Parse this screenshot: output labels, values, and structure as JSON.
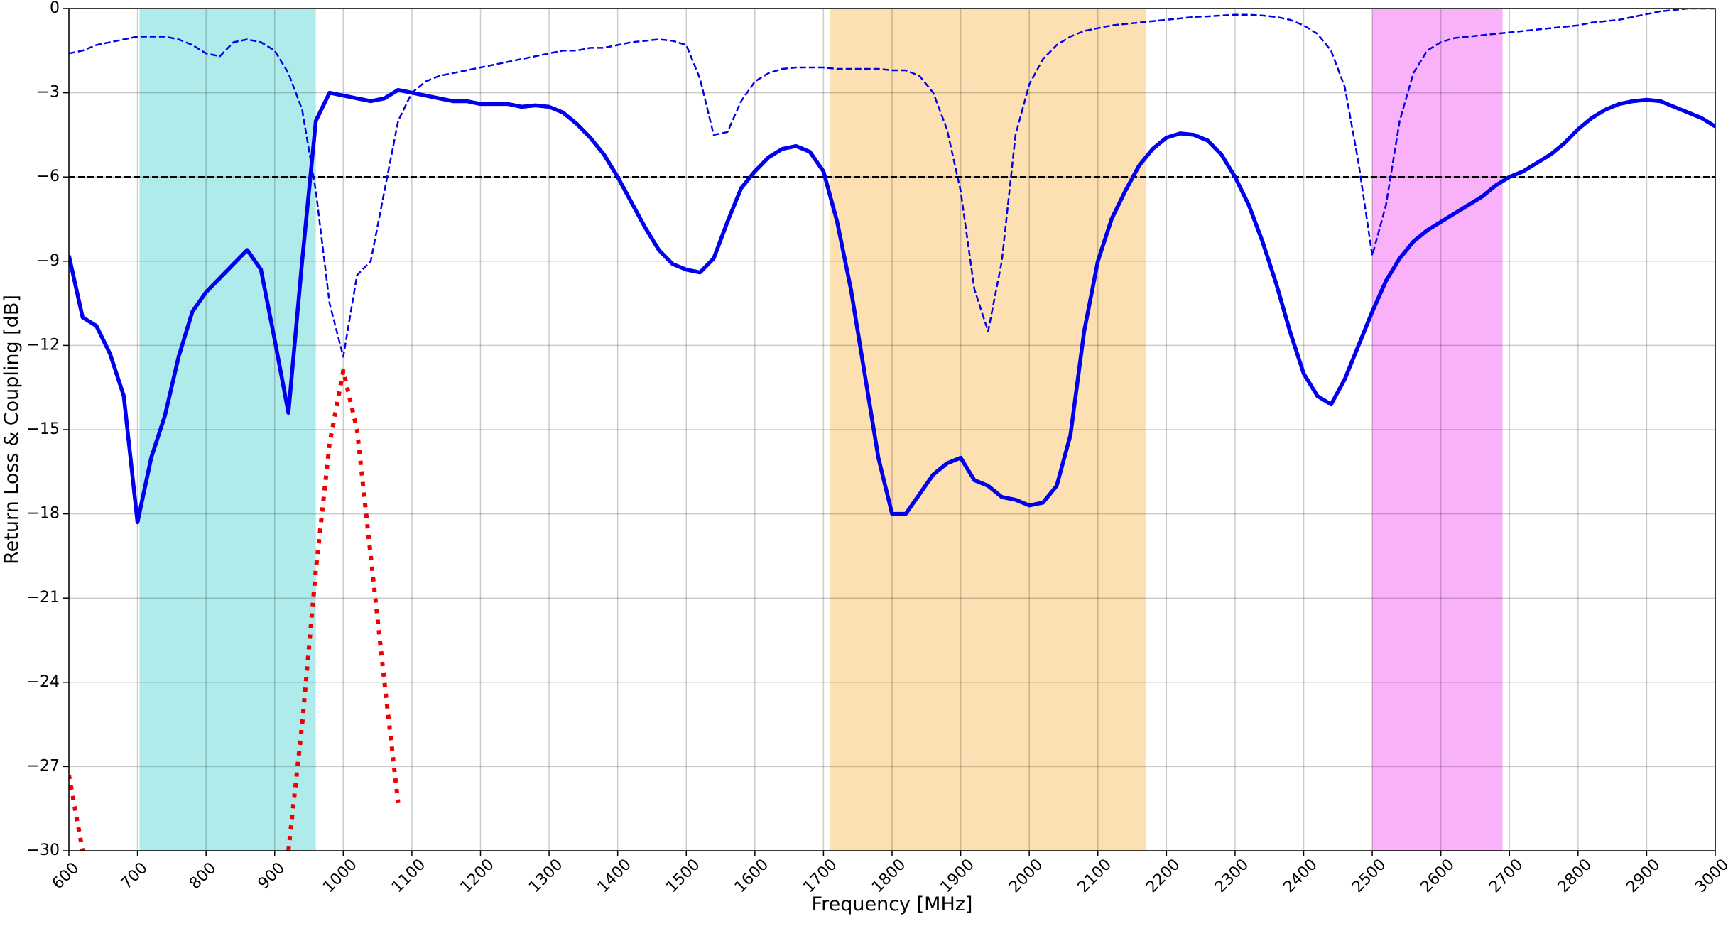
{
  "chart_data": {
    "type": "line",
    "x_label": "Frequency [MHz]",
    "y_label": "Return Loss & Coupling [dB]",
    "xlim": [
      600,
      3000
    ],
    "ylim": [
      -30,
      0
    ],
    "xticks": [
      600,
      700,
      800,
      900,
      1000,
      1100,
      1200,
      1300,
      1400,
      1500,
      1600,
      1700,
      1800,
      1900,
      2000,
      2100,
      2200,
      2300,
      2400,
      2500,
      2600,
      2700,
      2800,
      2900,
      3000
    ],
    "yticks": [
      {
        "value": -30,
        "label": "−30"
      },
      {
        "value": -27,
        "label": "−27"
      },
      {
        "value": -24,
        "label": "−24"
      },
      {
        "value": -21,
        "label": "−21"
      },
      {
        "value": -18,
        "label": "−18"
      },
      {
        "value": -15,
        "label": "−15"
      },
      {
        "value": -12,
        "label": "−12"
      },
      {
        "value": -9,
        "label": "−9"
      },
      {
        "value": -6,
        "label": "−6"
      },
      {
        "value": -3,
        "label": "−3"
      },
      0
    ],
    "grid": true,
    "bands": [
      {
        "from": 703,
        "to": 960,
        "color": "#b0ebeb"
      },
      {
        "from": 1710,
        "to": 2170,
        "color": "#fde0b2"
      },
      {
        "from": 2500,
        "to": 2690,
        "color": "#f9b2f9"
      }
    ],
    "hline": -6,
    "x": [
      600,
      620,
      640,
      660,
      680,
      700,
      720,
      740,
      760,
      780,
      800,
      820,
      840,
      860,
      880,
      900,
      920,
      940,
      960,
      980,
      1000,
      1020,
      1040,
      1060,
      1080,
      1100,
      1120,
      1140,
      1160,
      1180,
      1200,
      1220,
      1240,
      1260,
      1280,
      1300,
      1320,
      1340,
      1360,
      1380,
      1400,
      1420,
      1440,
      1460,
      1480,
      1500,
      1520,
      1540,
      1560,
      1580,
      1600,
      1620,
      1640,
      1660,
      1680,
      1700,
      1720,
      1740,
      1760,
      1780,
      1800,
      1820,
      1840,
      1860,
      1880,
      1900,
      1920,
      1940,
      1960,
      1980,
      2000,
      2020,
      2040,
      2060,
      2080,
      2100,
      2120,
      2140,
      2160,
      2180,
      2200,
      2220,
      2240,
      2260,
      2280,
      2300,
      2320,
      2340,
      2360,
      2380,
      2400,
      2420,
      2440,
      2460,
      2480,
      2500,
      2520,
      2540,
      2560,
      2580,
      2600,
      2620,
      2640,
      2660,
      2680,
      2700,
      2720,
      2740,
      2760,
      2780,
      2800,
      2820,
      2840,
      2860,
      2880,
      2900,
      2920,
      2940,
      2960,
      2980,
      3000
    ],
    "series": [
      {
        "color": "#0000ee",
        "style": "solid",
        "values": [
          -8.8,
          -11.0,
          -11.3,
          -12.3,
          -13.8,
          -18.3,
          -16.0,
          -14.5,
          -12.4,
          -10.8,
          -10.1,
          -9.6,
          -9.1,
          -8.6,
          -9.3,
          -11.8,
          -14.4,
          -9.0,
          -4.0,
          -3.0,
          -3.1,
          -3.2,
          -3.3,
          -3.2,
          -2.9,
          -3.0,
          -3.1,
          -3.2,
          -3.3,
          -3.3,
          -3.4,
          -3.4,
          -3.4,
          -3.5,
          -3.45,
          -3.5,
          -3.7,
          -4.1,
          -4.6,
          -5.2,
          -6.0,
          -6.9,
          -7.8,
          -8.6,
          -9.1,
          -9.3,
          -9.4,
          -8.9,
          -7.6,
          -6.4,
          -5.8,
          -5.3,
          -5.0,
          -4.9,
          -5.1,
          -5.8,
          -7.6,
          -10.0,
          -13.0,
          -16.0,
          -18.0,
          -18.0,
          -17.3,
          -16.6,
          -16.2,
          -16.0,
          -16.8,
          -17.0,
          -17.4,
          -17.5,
          -17.7,
          -17.6,
          -17.0,
          -15.2,
          -11.5,
          -9.0,
          -7.5,
          -6.5,
          -5.6,
          -5.0,
          -4.6,
          -4.45,
          -4.5,
          -4.7,
          -5.2,
          -6.0,
          -7.0,
          -8.3,
          -9.8,
          -11.5,
          -13.0,
          -13.8,
          -14.1,
          -13.2,
          -12.0,
          -10.8,
          -9.7,
          -8.9,
          -8.3,
          -7.9,
          -7.6,
          -7.3,
          -7.0,
          -6.7,
          -6.3,
          -6.0,
          -5.8,
          -5.5,
          -5.2,
          -4.8,
          -4.3,
          -3.9,
          -3.6,
          -3.4,
          -3.3,
          -3.25,
          -3.3,
          -3.5,
          -3.7,
          -3.9,
          -4.2
        ]
      },
      {
        "color": "#0000ee",
        "style": "dashed",
        "values": [
          -1.6,
          -1.5,
          -1.3,
          -1.2,
          -1.1,
          -1.0,
          -1.0,
          -1.0,
          -1.1,
          -1.3,
          -1.6,
          -1.7,
          -1.2,
          -1.1,
          -1.2,
          -1.5,
          -2.3,
          -3.6,
          -6.5,
          -10.5,
          -12.4,
          -9.5,
          -9.0,
          -6.5,
          -4.0,
          -3.0,
          -2.6,
          -2.4,
          -2.3,
          -2.2,
          -2.1,
          -2.0,
          -1.9,
          -1.8,
          -1.7,
          -1.6,
          -1.5,
          -1.5,
          -1.4,
          -1.4,
          -1.3,
          -1.2,
          -1.15,
          -1.1,
          -1.15,
          -1.3,
          -2.5,
          -4.5,
          -4.4,
          -3.3,
          -2.6,
          -2.3,
          -2.15,
          -2.1,
          -2.1,
          -2.1,
          -2.15,
          -2.15,
          -2.15,
          -2.15,
          -2.2,
          -2.2,
          -2.4,
          -3.0,
          -4.3,
          -6.5,
          -10.0,
          -11.5,
          -9.0,
          -4.5,
          -2.7,
          -1.8,
          -1.3,
          -1.0,
          -0.8,
          -0.7,
          -0.6,
          -0.55,
          -0.5,
          -0.45,
          -0.4,
          -0.35,
          -0.3,
          -0.28,
          -0.25,
          -0.22,
          -0.22,
          -0.25,
          -0.3,
          -0.4,
          -0.6,
          -0.9,
          -1.5,
          -2.8,
          -5.5,
          -8.8,
          -7.0,
          -4.0,
          -2.3,
          -1.5,
          -1.2,
          -1.05,
          -1.0,
          -0.95,
          -0.9,
          -0.85,
          -0.8,
          -0.75,
          -0.7,
          -0.65,
          -0.6,
          -0.5,
          -0.45,
          -0.4,
          -0.3,
          -0.2,
          -0.1,
          -0.05,
          0,
          0,
          0
        ]
      },
      {
        "color": "#ee0000",
        "style": "dotted",
        "values": [
          -27.3,
          -30,
          null,
          null,
          null,
          null,
          null,
          null,
          null,
          null,
          null,
          null,
          null,
          null,
          null,
          null,
          -30,
          -25.5,
          -20.0,
          -15.5,
          -12.9,
          -15.0,
          -19.5,
          -24.0,
          -28.3,
          null,
          null,
          null,
          null,
          null,
          null,
          null,
          null,
          null,
          null,
          null,
          null,
          null,
          null,
          null,
          null,
          null,
          null,
          null,
          null,
          null,
          null,
          null,
          null,
          null,
          null,
          null,
          null,
          null,
          null,
          null,
          null,
          null,
          null,
          null,
          null,
          null,
          null,
          null,
          null,
          null,
          null,
          null,
          null,
          null,
          null,
          null,
          null,
          null,
          null,
          null,
          null,
          null,
          null,
          null,
          null,
          null,
          null,
          null,
          null,
          null,
          null,
          null,
          null,
          null,
          null,
          null,
          null,
          null,
          null,
          null,
          null,
          null,
          null,
          null,
          null,
          null,
          null,
          null,
          null,
          null,
          null,
          null,
          null,
          null,
          null,
          null,
          null,
          null,
          null,
          null,
          null,
          null,
          null,
          null,
          null
        ]
      }
    ]
  }
}
